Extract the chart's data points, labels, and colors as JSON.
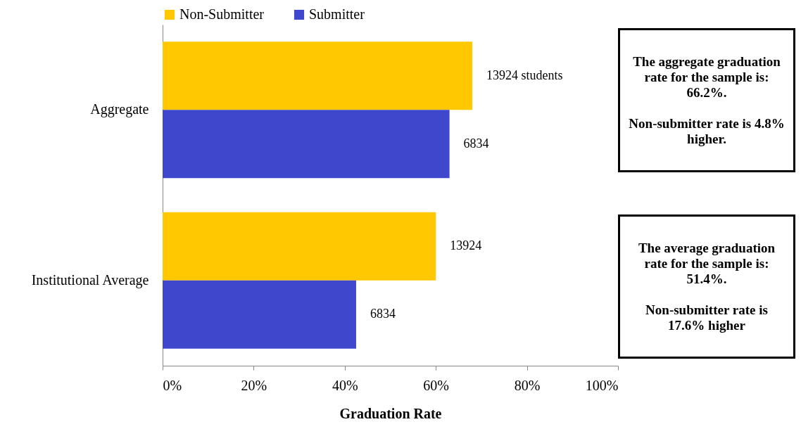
{
  "chart_data": {
    "type": "bar",
    "orientation": "horizontal",
    "categories": [
      "Aggregate",
      "Institutional Average"
    ],
    "series": [
      {
        "name": "Non-Submitter",
        "color": "#ffc800",
        "values": [
          68,
          60
        ]
      },
      {
        "name": "Submitter",
        "color": "#3f48cc",
        "values": [
          63,
          42.5
        ]
      }
    ],
    "xlim": [
      0,
      100
    ],
    "xticks": [
      {
        "value": 0,
        "label": "0%"
      },
      {
        "value": 20,
        "label": "20%"
      },
      {
        "value": 40,
        "label": "40%"
      },
      {
        "value": 60,
        "label": "60%"
      },
      {
        "value": 80,
        "label": "80%"
      },
      {
        "value": 100,
        "label": "100%"
      }
    ],
    "xlabel": "Graduation Rate",
    "legend": "top",
    "grid": false,
    "annotations": [
      {
        "text": "13924 students",
        "x": 68,
        "y": "Aggregate"
      },
      {
        "text": "6834",
        "x": 63,
        "y": "Aggregate"
      },
      {
        "text": "13924",
        "x": 60,
        "y": "Institutional Average"
      },
      {
        "text": "6834",
        "x": 42.5,
        "y": "Institutional Average"
      },
      "The aggregate graduation rate for the sample is: 66.2%.\n\nNon-submitter rate is 4.8% higher.",
      "The average graduation rate for the sample is: 51.4%.\n\nNon-submitter rate is 17.6% higher"
    ]
  }
}
